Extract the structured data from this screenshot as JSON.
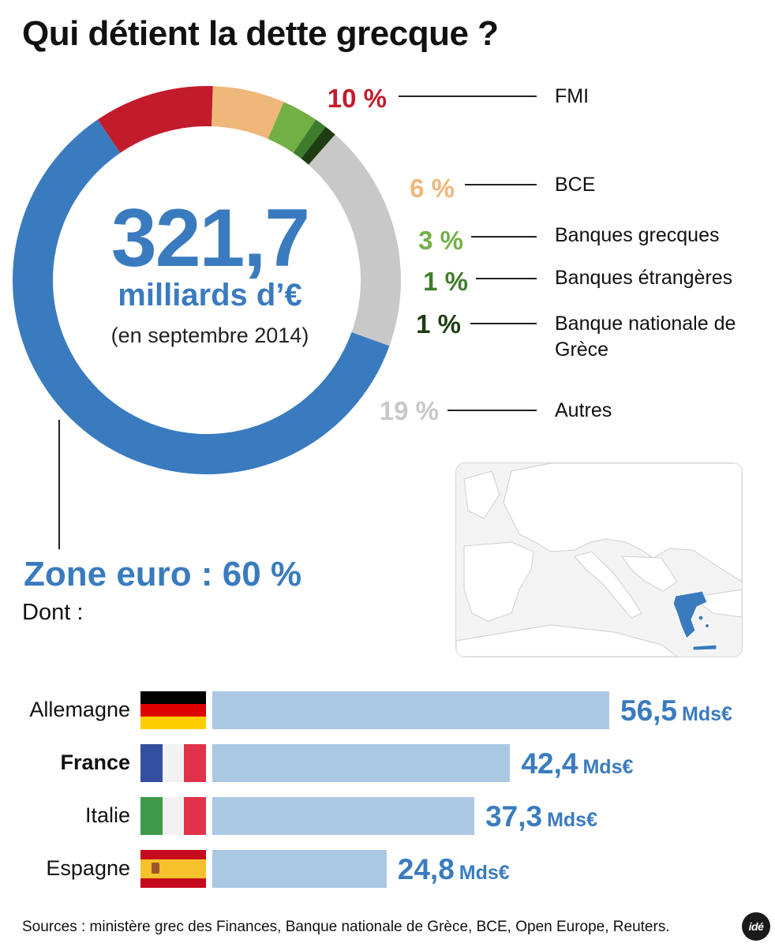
{
  "title": "Qui détient la dette grecque ?",
  "total": {
    "value": "321,7",
    "unit": "milliards d’€",
    "date": "(en septembre 2014)"
  },
  "chart_data": [
    {
      "type": "pie",
      "variant": "donut",
      "unit": "%",
      "slices": [
        {
          "label": "FMI",
          "value": 10,
          "value_label": "10 %",
          "color": "#c21b2c"
        },
        {
          "label": "BCE",
          "value": 6,
          "value_label": "6 %",
          "color": "#f0b77a"
        },
        {
          "label": "Banques grecques",
          "value": 3,
          "value_label": "3 %",
          "color": "#72b045"
        },
        {
          "label": "Banques étrangères",
          "value": 1,
          "value_label": "1 %",
          "color": "#3f7d2c"
        },
        {
          "label": "Banque nationale de Grèce",
          "value": 1,
          "value_label": "1 %",
          "color": "#1e3d12"
        },
        {
          "label": "Autres",
          "value": 19,
          "value_label": "19 %",
          "color": "#c8c8c8"
        },
        {
          "label": "Zone euro",
          "value": 60,
          "value_label": "Zone euro : 60 %",
          "color": "#3a7bbf"
        }
      ]
    },
    {
      "type": "bar",
      "orientation": "horizontal",
      "unit": "Mds€",
      "categories": [
        "Allemagne",
        "France",
        "Italie",
        "Espagne"
      ],
      "values": [
        56.5,
        42.4,
        37.3,
        24.8
      ],
      "value_labels": [
        "56,5",
        "42,4",
        "37,3",
        "24,8"
      ],
      "bar_color": "#abc8e3",
      "label_color": "#3a7bbf"
    }
  ],
  "zone_intro": "Dont :",
  "unit_label": "Mds€",
  "flags": {
    "Allemagne": [
      "#000000",
      "#dd0000",
      "#ffce00"
    ],
    "France": [
      "#0055a4",
      "#ffffff",
      "#ef4135"
    ],
    "Italie": [
      "#009246",
      "#ffffff",
      "#ce2b37"
    ],
    "Espagne": [
      "#c60b1e",
      "#ffc400",
      "#c60b1e"
    ]
  },
  "sources": "Sources : ministère grec des Finances, Banque nationale de Grèce, BCE, Open Europe, Reuters.",
  "logo": "idé"
}
